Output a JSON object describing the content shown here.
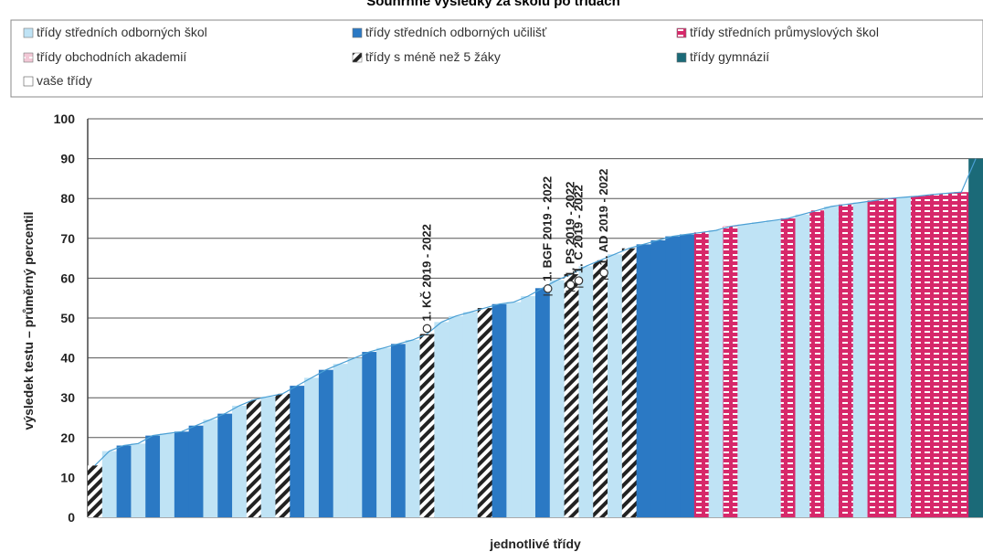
{
  "chart_data": {
    "type": "bar",
    "title": "Souhrnné výsledky za školu po třídách",
    "xlabel": "jednotlivé třídy",
    "ylabel": "výsledek testu – průměrný percentil",
    "ylim": [
      0,
      100
    ],
    "yticks": [
      0,
      10,
      20,
      30,
      40,
      50,
      60,
      70,
      80,
      90,
      100
    ],
    "grid": true,
    "legend": {
      "placement": "top",
      "entries": [
        {
          "key": "sos",
          "label": "třídy středních odborných škol",
          "color": "#bfe3f5"
        },
        {
          "key": "sou",
          "label": "třídy středních odborných učilišť",
          "color": "#2b79c4"
        },
        {
          "key": "sps",
          "label": "třídy středních průmyslových škol",
          "color": "#d7286a"
        },
        {
          "key": "oa",
          "label": "třídy obchodních akademií",
          "color": "#f2c8d6"
        },
        {
          "key": "small",
          "label": "třídy s méně než 5 žáky",
          "color": "#222222"
        },
        {
          "key": "gym",
          "label": "třídy gymnázií",
          "color": "#1b6a78"
        },
        {
          "key": "yours",
          "label": "vaše třídy",
          "color": "#ffffff"
        }
      ]
    },
    "class_types": [
      "small",
      "sos",
      "sou",
      "sos",
      "sou",
      "sos",
      "sou",
      "sou",
      "sos",
      "sou",
      "sos",
      "small",
      "sos",
      "small",
      "sou",
      "sos",
      "sou",
      "sos",
      "sos",
      "sou",
      "sos",
      "sou",
      "sos",
      "small",
      "sos",
      "sos",
      "sos",
      "small",
      "sou",
      "sos",
      "sos",
      "sou",
      "sos",
      "small",
      "sos",
      "small",
      "sos",
      "small",
      "sou",
      "sou",
      "sou",
      "sou",
      "sps",
      "sos",
      "sps",
      "sos",
      "sos",
      "sos",
      "sps",
      "sos",
      "sps",
      "sos",
      "sps",
      "sos",
      "sps",
      "sps",
      "sos",
      "sps",
      "sps",
      "sps",
      "sps",
      "gym"
    ],
    "values": [
      13.0,
      16.6,
      18.0,
      18.5,
      20.5,
      21.0,
      21.5,
      23.0,
      24.5,
      26.0,
      28.0,
      29.5,
      30.3,
      31.0,
      33.0,
      35.0,
      37.0,
      38.5,
      40.0,
      41.5,
      42.5,
      43.5,
      44.5,
      46.0,
      49.0,
      50.5,
      51.5,
      52.5,
      53.5,
      54.0,
      55.5,
      57.5,
      59.5,
      61.0,
      63.0,
      64.5,
      66.0,
      67.5,
      68.5,
      69.5,
      70.5,
      71.0,
      71.5,
      72.0,
      73.0,
      73.5,
      74.0,
      74.5,
      75.0,
      76.0,
      77.0,
      78.0,
      78.5,
      79.0,
      79.5,
      80.0,
      80.3,
      80.6,
      81.0,
      81.3,
      81.6,
      90.0
    ],
    "labeled_classes": [
      {
        "label": "1. KČ 2019 - 2022",
        "value": 46
      },
      {
        "label": "1. BGF 2019 - 2022",
        "value": 56
      },
      {
        "label": "1. PS 2019 - 2022",
        "value": 57
      },
      {
        "label": "1. C 2019 - 2022",
        "value": 58
      },
      {
        "label": "1. AD 2019 - 2022",
        "value": 60
      }
    ]
  }
}
